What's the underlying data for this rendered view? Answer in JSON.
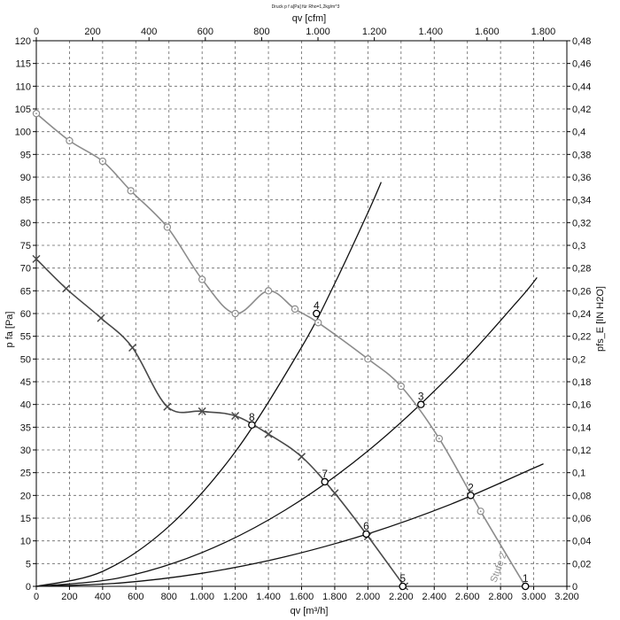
{
  "chart_data": {
    "type": "line",
    "title": "Druck p f a[Pa] für Rho=1,2kg/m^3",
    "xlabel": "qv [m³/h]",
    "x2label": "qv [cfm]",
    "ylabel": "p fa [Pa]",
    "y2label": "pfs_E [IN H2O]",
    "xlim": [
      0,
      3200
    ],
    "ylim": [
      0,
      120
    ],
    "x2lim": [
      0,
      1883.5
    ],
    "y2lim": [
      0,
      0.48
    ],
    "grid": true,
    "x_ticks": [
      "0",
      "200",
      "400",
      "600",
      "800",
      "1.000",
      "1.200",
      "1.400",
      "1.600",
      "1.800",
      "2.000",
      "2.200",
      "2.400",
      "2.600",
      "2.800",
      "3.000",
      "3.200"
    ],
    "y_ticks": [
      "0",
      "5",
      "10",
      "15",
      "20",
      "25",
      "30",
      "35",
      "40",
      "45",
      "50",
      "55",
      "60",
      "65",
      "70",
      "75",
      "80",
      "85",
      "90",
      "95",
      "100",
      "105",
      "110",
      "115",
      "120"
    ],
    "x2_ticks": [
      "0",
      "200",
      "400",
      "600",
      "800",
      "1.000",
      "1.200",
      "1.400",
      "1.600",
      "1.800"
    ],
    "y2_ticks": [
      "0",
      "0,02",
      "0,04",
      "0,06",
      "0,08",
      "0,1",
      "0,12",
      "0,14",
      "0,16",
      "0,18",
      "0,2",
      "0,22",
      "0,24",
      "0,26",
      "0,28",
      "0,3",
      "0,32",
      "0,34",
      "0,36",
      "0,38",
      "0,4",
      "0,42",
      "0,44",
      "0,46",
      "0,48"
    ],
    "series": [
      {
        "name": "Stufe 2",
        "color": "#8c8c8c",
        "marker": "circle-dot",
        "x": [
          0,
          200,
          400,
          570,
          790,
          1000,
          1200,
          1400,
          1560,
          1700,
          2000,
          2200,
          2430,
          2680,
          2950
        ],
        "y": [
          104,
          98,
          93.5,
          87,
          79,
          67.5,
          60,
          65,
          61,
          58,
          50,
          44,
          32.5,
          16.5,
          0
        ]
      },
      {
        "name": "",
        "color": "#4a4a4a",
        "marker": "x",
        "x": [
          0,
          180,
          390,
          580,
          790,
          1000,
          1200,
          1400,
          1600,
          1800,
          2000,
          2220
        ],
        "y": [
          72,
          65.5,
          59,
          52.5,
          39.5,
          38.5,
          37.5,
          33.5,
          28.5,
          20.5,
          11,
          0
        ]
      }
    ],
    "system_curves": [
      {
        "x": [
          0,
          500,
          1000,
          1500,
          2000,
          2500,
          3000,
          3050
        ],
        "y": [
          0,
          0.72,
          2.89,
          6.5,
          11.56,
          18.06,
          26.0,
          26.8
        ]
      },
      {
        "x": [
          0,
          500,
          1000,
          1500,
          2000,
          2500,
          2900,
          3020
        ],
        "y": [
          0,
          1.86,
          7.44,
          16.75,
          29.78,
          46.53,
          62.6,
          67.9
        ]
      },
      {
        "x": [
          0,
          400,
          800,
          1200,
          1600,
          1800,
          2000,
          2080
        ],
        "y": [
          0,
          3.3,
          13.2,
          29.6,
          52.6,
          66.6,
          82.2,
          88.9
        ]
      }
    ],
    "operating_points": [
      {
        "label": "1",
        "x": 2950,
        "y": 0
      },
      {
        "label": "2",
        "x": 2620,
        "y": 20
      },
      {
        "label": "3",
        "x": 2320,
        "y": 40
      },
      {
        "label": "4",
        "x": 1690,
        "y": 60
      },
      {
        "label": "5",
        "x": 2210,
        "y": 0
      },
      {
        "label": "6",
        "x": 1990,
        "y": 11.5
      },
      {
        "label": "7",
        "x": 1740,
        "y": 23
      },
      {
        "label": "8",
        "x": 1300,
        "y": 35.5
      }
    ]
  }
}
